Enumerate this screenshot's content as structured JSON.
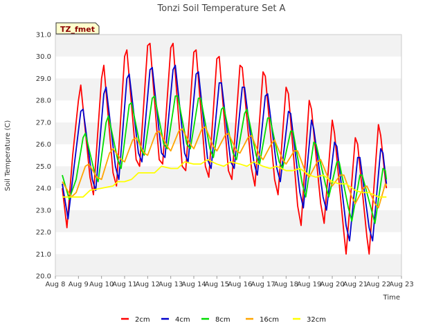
{
  "chart_data": {
    "type": "line",
    "title": "Tonzi Soil Temperature Set A",
    "xlabel": "Time",
    "ylabel": "Soil Temperature (C)",
    "tag": "TZ_fmet",
    "ylim": [
      20.0,
      31.0
    ],
    "xlim": [
      8,
      23
    ],
    "yticks": [
      "20.0",
      "21.0",
      "22.0",
      "23.0",
      "24.0",
      "25.0",
      "26.0",
      "27.0",
      "28.0",
      "29.0",
      "30.0",
      "31.0"
    ],
    "xticks": [
      "Aug 8",
      "Aug 9",
      "Aug 10",
      "Aug 11",
      "Aug 12",
      "Aug 13",
      "Aug 14",
      "Aug 15",
      "Aug 16",
      "Aug 17",
      "Aug 18",
      "Aug 19",
      "Aug 20",
      "Aug 21",
      "Aug 22",
      "Aug 23"
    ],
    "legend_position": "bottom",
    "grid": "horizontal bands",
    "series": [
      {
        "name": "2cm",
        "color": "#ff0000",
        "points": [
          [
            8.3,
            24.0
          ],
          [
            8.5,
            22.2
          ],
          [
            8.75,
            25.5
          ],
          [
            9.0,
            28.0
          ],
          [
            9.1,
            28.7
          ],
          [
            9.5,
            24.5
          ],
          [
            9.65,
            23.7
          ],
          [
            10.0,
            29.0
          ],
          [
            10.1,
            29.6
          ],
          [
            10.5,
            24.7
          ],
          [
            10.65,
            24.1
          ],
          [
            11.0,
            30.0
          ],
          [
            11.1,
            30.3
          ],
          [
            11.5,
            25.3
          ],
          [
            11.65,
            25.0
          ],
          [
            12.0,
            30.5
          ],
          [
            12.1,
            30.6
          ],
          [
            12.5,
            25.3
          ],
          [
            12.65,
            25.1
          ],
          [
            13.0,
            30.4
          ],
          [
            13.1,
            30.6
          ],
          [
            13.5,
            25.0
          ],
          [
            13.65,
            24.8
          ],
          [
            14.0,
            30.2
          ],
          [
            14.1,
            30.3
          ],
          [
            14.5,
            25.0
          ],
          [
            14.65,
            24.5
          ],
          [
            15.0,
            29.9
          ],
          [
            15.1,
            30.0
          ],
          [
            15.5,
            24.8
          ],
          [
            15.65,
            24.4
          ],
          [
            16.0,
            29.6
          ],
          [
            16.1,
            29.5
          ],
          [
            16.5,
            24.9
          ],
          [
            16.65,
            24.1
          ],
          [
            17.0,
            29.3
          ],
          [
            17.1,
            29.1
          ],
          [
            17.5,
            24.4
          ],
          [
            17.65,
            23.7
          ],
          [
            18.0,
            28.6
          ],
          [
            18.1,
            28.3
          ],
          [
            18.5,
            23.2
          ],
          [
            18.65,
            22.3
          ],
          [
            19.0,
            28.0
          ],
          [
            19.1,
            27.6
          ],
          [
            19.5,
            23.3
          ],
          [
            19.65,
            22.4
          ],
          [
            20.0,
            27.1
          ],
          [
            20.1,
            26.5
          ],
          [
            20.5,
            22.0
          ],
          [
            20.6,
            21.0
          ],
          [
            21.0,
            26.3
          ],
          [
            21.1,
            26.0
          ],
          [
            21.5,
            21.8
          ],
          [
            21.6,
            21.0
          ],
          [
            22.0,
            26.9
          ],
          [
            22.1,
            26.4
          ],
          [
            22.3,
            24.4
          ],
          [
            22.35,
            24.0
          ]
        ]
      },
      {
        "name": "4cm",
        "color": "#0000cc",
        "points": [
          [
            8.3,
            24.2
          ],
          [
            8.55,
            22.6
          ],
          [
            8.8,
            24.9
          ],
          [
            9.1,
            27.5
          ],
          [
            9.2,
            27.6
          ],
          [
            9.6,
            24.4
          ],
          [
            9.75,
            23.9
          ],
          [
            10.1,
            28.3
          ],
          [
            10.2,
            28.6
          ],
          [
            10.6,
            25.0
          ],
          [
            10.75,
            24.4
          ],
          [
            11.1,
            29.0
          ],
          [
            11.2,
            29.2
          ],
          [
            11.6,
            25.6
          ],
          [
            11.75,
            25.2
          ],
          [
            12.1,
            29.4
          ],
          [
            12.2,
            29.5
          ],
          [
            12.6,
            25.6
          ],
          [
            12.75,
            25.4
          ],
          [
            13.1,
            29.4
          ],
          [
            13.2,
            29.6
          ],
          [
            13.6,
            25.6
          ],
          [
            13.75,
            25.2
          ],
          [
            14.1,
            29.2
          ],
          [
            14.2,
            29.3
          ],
          [
            14.6,
            25.3
          ],
          [
            14.75,
            24.9
          ],
          [
            15.1,
            28.8
          ],
          [
            15.2,
            28.8
          ],
          [
            15.6,
            25.2
          ],
          [
            15.75,
            24.9
          ],
          [
            16.1,
            28.6
          ],
          [
            16.2,
            28.6
          ],
          [
            16.6,
            25.2
          ],
          [
            16.75,
            24.6
          ],
          [
            17.1,
            28.2
          ],
          [
            17.2,
            28.3
          ],
          [
            17.6,
            24.9
          ],
          [
            17.75,
            24.3
          ],
          [
            18.1,
            27.5
          ],
          [
            18.2,
            27.4
          ],
          [
            18.6,
            23.8
          ],
          [
            18.75,
            23.1
          ],
          [
            19.1,
            27.1
          ],
          [
            19.2,
            26.7
          ],
          [
            19.6,
            23.6
          ],
          [
            19.75,
            23.0
          ],
          [
            20.1,
            26.1
          ],
          [
            20.2,
            25.9
          ],
          [
            20.6,
            22.3
          ],
          [
            20.75,
            21.6
          ],
          [
            21.1,
            25.4
          ],
          [
            21.2,
            25.4
          ],
          [
            21.6,
            22.2
          ],
          [
            21.75,
            21.6
          ],
          [
            22.1,
            25.8
          ],
          [
            22.2,
            25.6
          ],
          [
            22.35,
            24.2
          ]
        ]
      },
      {
        "name": "8cm",
        "color": "#00dd00",
        "points": [
          [
            8.3,
            24.6
          ],
          [
            8.6,
            23.5
          ],
          [
            8.9,
            24.4
          ],
          [
            9.2,
            26.3
          ],
          [
            9.3,
            26.5
          ],
          [
            9.7,
            24.7
          ],
          [
            9.85,
            24.3
          ],
          [
            10.2,
            27.0
          ],
          [
            10.3,
            27.3
          ],
          [
            10.7,
            25.3
          ],
          [
            10.85,
            24.9
          ],
          [
            11.2,
            27.8
          ],
          [
            11.3,
            27.9
          ],
          [
            11.7,
            25.8
          ],
          [
            11.85,
            25.5
          ],
          [
            12.2,
            28.1
          ],
          [
            12.3,
            28.2
          ],
          [
            12.7,
            26.0
          ],
          [
            12.85,
            25.8
          ],
          [
            13.2,
            28.2
          ],
          [
            13.3,
            28.2
          ],
          [
            13.7,
            26.0
          ],
          [
            13.85,
            25.8
          ],
          [
            14.2,
            28.1
          ],
          [
            14.3,
            28.1
          ],
          [
            14.7,
            25.8
          ],
          [
            14.85,
            25.4
          ],
          [
            15.2,
            27.6
          ],
          [
            15.3,
            27.7
          ],
          [
            15.7,
            25.6
          ],
          [
            15.85,
            25.3
          ],
          [
            16.2,
            27.4
          ],
          [
            16.3,
            27.6
          ],
          [
            16.7,
            25.5
          ],
          [
            16.85,
            25.1
          ],
          [
            17.2,
            27.2
          ],
          [
            17.3,
            27.2
          ],
          [
            17.7,
            25.2
          ],
          [
            17.85,
            24.9
          ],
          [
            18.2,
            26.6
          ],
          [
            18.3,
            26.6
          ],
          [
            18.7,
            24.2
          ],
          [
            18.85,
            23.6
          ],
          [
            19.2,
            26.1
          ],
          [
            19.3,
            26.0
          ],
          [
            19.7,
            24.2
          ],
          [
            19.85,
            23.6
          ],
          [
            20.2,
            25.2
          ],
          [
            20.3,
            25.2
          ],
          [
            20.7,
            23.1
          ],
          [
            20.85,
            22.5
          ],
          [
            21.2,
            24.6
          ],
          [
            21.3,
            24.6
          ],
          [
            21.7,
            23.0
          ],
          [
            21.85,
            22.4
          ],
          [
            22.2,
            24.9
          ],
          [
            22.3,
            24.8
          ],
          [
            22.35,
            24.4
          ]
        ]
      },
      {
        "name": "16cm",
        "color": "#ffa500",
        "points": [
          [
            8.3,
            24.3
          ],
          [
            8.7,
            23.6
          ],
          [
            8.9,
            23.8
          ],
          [
            9.3,
            25.0
          ],
          [
            9.45,
            25.1
          ],
          [
            9.8,
            24.5
          ],
          [
            10.0,
            24.4
          ],
          [
            10.35,
            25.6
          ],
          [
            10.5,
            25.8
          ],
          [
            10.85,
            25.3
          ],
          [
            11.0,
            25.2
          ],
          [
            11.35,
            26.2
          ],
          [
            11.5,
            26.3
          ],
          [
            11.85,
            25.6
          ],
          [
            12.0,
            25.5
          ],
          [
            12.35,
            26.5
          ],
          [
            12.5,
            26.6
          ],
          [
            12.85,
            25.9
          ],
          [
            13.0,
            25.7
          ],
          [
            13.35,
            26.6
          ],
          [
            13.5,
            26.7
          ],
          [
            13.85,
            26.0
          ],
          [
            14.0,
            25.8
          ],
          [
            14.35,
            26.7
          ],
          [
            14.5,
            26.8
          ],
          [
            14.85,
            25.9
          ],
          [
            15.0,
            25.7
          ],
          [
            15.35,
            26.4
          ],
          [
            15.5,
            26.5
          ],
          [
            15.85,
            25.7
          ],
          [
            16.0,
            25.6
          ],
          [
            16.35,
            26.3
          ],
          [
            16.5,
            26.4
          ],
          [
            16.85,
            25.5
          ],
          [
            17.0,
            25.3
          ],
          [
            17.35,
            26.0
          ],
          [
            17.5,
            26.2
          ],
          [
            17.85,
            25.3
          ],
          [
            18.0,
            25.1
          ],
          [
            18.35,
            25.7
          ],
          [
            18.5,
            25.7
          ],
          [
            18.85,
            24.7
          ],
          [
            19.0,
            24.5
          ],
          [
            19.35,
            25.2
          ],
          [
            19.5,
            25.3
          ],
          [
            19.85,
            24.4
          ],
          [
            20.0,
            24.1
          ],
          [
            20.35,
            24.6
          ],
          [
            20.5,
            24.6
          ],
          [
            20.85,
            23.6
          ],
          [
            21.0,
            23.3
          ],
          [
            21.35,
            24.0
          ],
          [
            21.5,
            24.1
          ],
          [
            21.85,
            23.3
          ],
          [
            22.0,
            23.1
          ],
          [
            22.3,
            24.2
          ],
          [
            22.35,
            24.1
          ]
        ]
      },
      {
        "name": "32cm",
        "color": "#ffff00",
        "points": [
          [
            8.3,
            23.6
          ],
          [
            8.8,
            23.6
          ],
          [
            9.2,
            23.6
          ],
          [
            9.5,
            23.9
          ],
          [
            10.0,
            24.0
          ],
          [
            10.5,
            24.1
          ],
          [
            10.7,
            24.3
          ],
          [
            11.0,
            24.3
          ],
          [
            11.3,
            24.4
          ],
          [
            11.6,
            24.7
          ],
          [
            12.0,
            24.7
          ],
          [
            12.3,
            24.7
          ],
          [
            12.6,
            25.0
          ],
          [
            13.0,
            24.9
          ],
          [
            13.3,
            24.9
          ],
          [
            13.6,
            25.2
          ],
          [
            14.0,
            25.1
          ],
          [
            14.3,
            25.1
          ],
          [
            14.6,
            25.3
          ],
          [
            15.0,
            25.1
          ],
          [
            15.3,
            25.0
          ],
          [
            15.6,
            25.2
          ],
          [
            16.0,
            25.1
          ],
          [
            16.3,
            25.0
          ],
          [
            16.6,
            25.2
          ],
          [
            17.0,
            25.0
          ],
          [
            17.3,
            24.9
          ],
          [
            17.6,
            25.0
          ],
          [
            18.0,
            24.8
          ],
          [
            18.3,
            24.8
          ],
          [
            18.6,
            24.9
          ],
          [
            19.0,
            24.6
          ],
          [
            19.3,
            24.5
          ],
          [
            19.6,
            24.6
          ],
          [
            20.0,
            24.3
          ],
          [
            20.3,
            24.2
          ],
          [
            20.6,
            24.2
          ],
          [
            21.0,
            23.9
          ],
          [
            21.3,
            23.8
          ],
          [
            21.6,
            23.8
          ],
          [
            22.0,
            23.6
          ],
          [
            22.35,
            23.6
          ]
        ]
      }
    ]
  }
}
